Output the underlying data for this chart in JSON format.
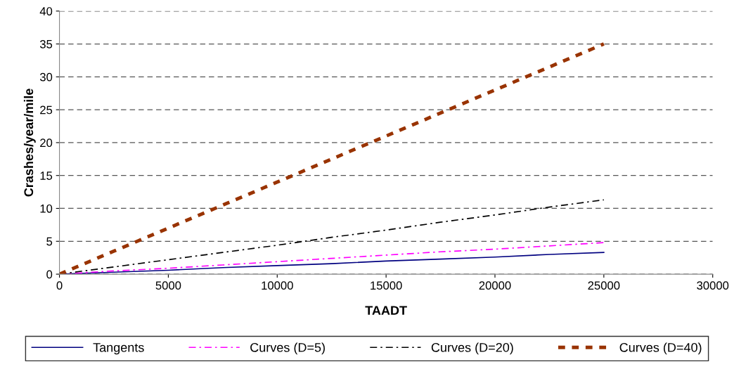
{
  "chart_data": {
    "type": "line",
    "xlabel": "TAADT",
    "ylabel": "Crashes/year/mile",
    "x": [
      0,
      2500,
      5000,
      7500,
      10000,
      12500,
      15000,
      17500,
      20000,
      22500,
      25000
    ],
    "series": [
      {
        "name": "Tangents",
        "color": "#000080",
        "line_style": "solid",
        "values": [
          0,
          0.3,
          0.6,
          1.0,
          1.3,
          1.6,
          2.0,
          2.3,
          2.6,
          3.0,
          3.3
        ]
      },
      {
        "name": "Curves (D=5)",
        "color": "#ff00ff",
        "line_style": "dashdot",
        "values": [
          0,
          0.5,
          0.9,
          1.4,
          1.9,
          2.4,
          2.9,
          3.4,
          3.8,
          4.3,
          4.8
        ]
      },
      {
        "name": "Curves (D=20)",
        "color": "#000000",
        "line_style": "dashdot",
        "values": [
          0,
          1.1,
          2.2,
          3.3,
          4.4,
          5.6,
          6.7,
          7.9,
          9.0,
          10.2,
          11.3
        ]
      },
      {
        "name": "Curves (D=40)",
        "color": "#993300",
        "line_style": "dashed",
        "values": [
          0,
          3.5,
          7,
          10.5,
          14,
          17.5,
          21,
          24.5,
          28,
          31.5,
          35
        ]
      }
    ],
    "xlim": [
      0,
      30000
    ],
    "xticks": [
      0,
      5000,
      10000,
      15000,
      20000,
      25000,
      30000
    ],
    "ylim": [
      0,
      40
    ],
    "yticks": [
      0,
      5,
      10,
      15,
      20,
      25,
      30,
      35,
      40
    ],
    "grid": "y",
    "legend": "bottom",
    "marker": "none"
  }
}
